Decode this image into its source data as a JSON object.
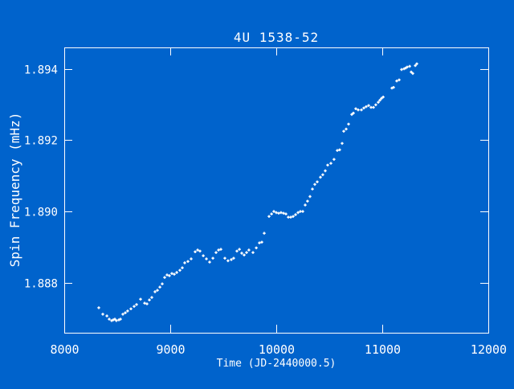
{
  "colors": {
    "background": "#0063CC",
    "foreground": "#FFFFFF",
    "marker": "#FFFFFF"
  },
  "chart_data": {
    "type": "scatter",
    "title": "4U 1538-52",
    "xlabel": "Time (JD-2440000.5)",
    "ylabel": "Spin Frequency (mHz)",
    "xlim": [
      8000,
      12000
    ],
    "ylim": [
      1.8866,
      1.8946
    ],
    "xticks": [
      8000,
      9000,
      10000,
      11000,
      12000
    ],
    "xtick_labels": [
      "8000",
      "9000",
      "10000",
      "11000",
      "12000"
    ],
    "yticks": [
      1.888,
      1.89,
      1.892,
      1.894
    ],
    "ytick_labels": [
      "1.888",
      "1.890",
      "1.892",
      "1.894"
    ],
    "grid": false,
    "legend": null,
    "marker": "plus",
    "marker_size": 3,
    "points": [
      [
        8326,
        1.8873
      ],
      [
        8364,
        1.88712
      ],
      [
        8402,
        1.88707
      ],
      [
        8424,
        1.88698
      ],
      [
        8447,
        1.88694
      ],
      [
        8462,
        1.88696
      ],
      [
        8477,
        1.88698
      ],
      [
        8492,
        1.88694
      ],
      [
        8515,
        1.88696
      ],
      [
        8530,
        1.88698
      ],
      [
        8553,
        1.88712
      ],
      [
        8576,
        1.88716
      ],
      [
        8598,
        1.88721
      ],
      [
        8629,
        1.88727
      ],
      [
        8659,
        1.88734
      ],
      [
        8682,
        1.88739
      ],
      [
        8720,
        1.88754
      ],
      [
        8758,
        1.88743
      ],
      [
        8780,
        1.88741
      ],
      [
        8803,
        1.88752
      ],
      [
        8826,
        1.88759
      ],
      [
        8856,
        1.88775
      ],
      [
        8879,
        1.88779
      ],
      [
        8902,
        1.88788
      ],
      [
        8924,
        1.88797
      ],
      [
        8947,
        1.88815
      ],
      [
        8970,
        1.88822
      ],
      [
        8992,
        1.8882
      ],
      [
        9015,
        1.88826
      ],
      [
        9038,
        1.88824
      ],
      [
        9061,
        1.88829
      ],
      [
        9091,
        1.88835
      ],
      [
        9114,
        1.88842
      ],
      [
        9136,
        1.88856
      ],
      [
        9167,
        1.8886
      ],
      [
        9197,
        1.88867
      ],
      [
        9235,
        1.88887
      ],
      [
        9258,
        1.88892
      ],
      [
        9280,
        1.88889
      ],
      [
        9311,
        1.88876
      ],
      [
        9341,
        1.88867
      ],
      [
        9371,
        1.88858
      ],
      [
        9402,
        1.88869
      ],
      [
        9432,
        1.88885
      ],
      [
        9455,
        1.88892
      ],
      [
        9477,
        1.88894
      ],
      [
        9515,
        1.88869
      ],
      [
        9545,
        1.88862
      ],
      [
        9576,
        1.88865
      ],
      [
        9598,
        1.88869
      ],
      [
        9629,
        1.88889
      ],
      [
        9652,
        1.88894
      ],
      [
        9674,
        1.88883
      ],
      [
        9697,
        1.88878
      ],
      [
        9720,
        1.88885
      ],
      [
        9742,
        1.88892
      ],
      [
        9780,
        1.88885
      ],
      [
        9811,
        1.88898
      ],
      [
        9841,
        1.88912
      ],
      [
        9864,
        1.88914
      ],
      [
        9886,
        1.88939
      ],
      [
        9932,
        1.88986
      ],
      [
        9955,
        1.88993
      ],
      [
        9977,
        1.89
      ],
      [
        10000,
        1.88997
      ],
      [
        10023,
        1.88995
      ],
      [
        10045,
        1.88997
      ],
      [
        10068,
        1.88995
      ],
      [
        10091,
        1.88993
      ],
      [
        10114,
        1.88984
      ],
      [
        10136,
        1.88984
      ],
      [
        10159,
        1.88986
      ],
      [
        10182,
        1.88991
      ],
      [
        10205,
        1.88997
      ],
      [
        10227,
        1.89
      ],
      [
        10250,
        1.89
      ],
      [
        10273,
        1.89018
      ],
      [
        10295,
        1.89029
      ],
      [
        10318,
        1.89042
      ],
      [
        10341,
        1.89063
      ],
      [
        10364,
        1.89076
      ],
      [
        10386,
        1.89083
      ],
      [
        10417,
        1.89096
      ],
      [
        10439,
        1.89103
      ],
      [
        10462,
        1.89114
      ],
      [
        10485,
        1.8913
      ],
      [
        10515,
        1.89135
      ],
      [
        10545,
        1.89146
      ],
      [
        10576,
        1.89171
      ],
      [
        10598,
        1.89173
      ],
      [
        10621,
        1.89191
      ],
      [
        10636,
        1.89225
      ],
      [
        10659,
        1.89231
      ],
      [
        10682,
        1.89245
      ],
      [
        10712,
        1.89272
      ],
      [
        10727,
        1.89276
      ],
      [
        10750,
        1.89288
      ],
      [
        10773,
        1.89285
      ],
      [
        10803,
        1.89285
      ],
      [
        10826,
        1.8929
      ],
      [
        10848,
        1.89294
      ],
      [
        10871,
        1.89297
      ],
      [
        10894,
        1.89292
      ],
      [
        10917,
        1.89292
      ],
      [
        10939,
        1.89299
      ],
      [
        10962,
        1.89306
      ],
      [
        10977,
        1.89312
      ],
      [
        10992,
        1.89317
      ],
      [
        11008,
        1.89321
      ],
      [
        11091,
        1.89346
      ],
      [
        11106,
        1.89348
      ],
      [
        11136,
        1.89366
      ],
      [
        11159,
        1.89369
      ],
      [
        11182,
        1.89398
      ],
      [
        11205,
        1.894
      ],
      [
        11220,
        1.89402
      ],
      [
        11235,
        1.89405
      ],
      [
        11258,
        1.89407
      ],
      [
        11273,
        1.89391
      ],
      [
        11288,
        1.89387
      ],
      [
        11311,
        1.89409
      ],
      [
        11326,
        1.89414
      ]
    ]
  }
}
